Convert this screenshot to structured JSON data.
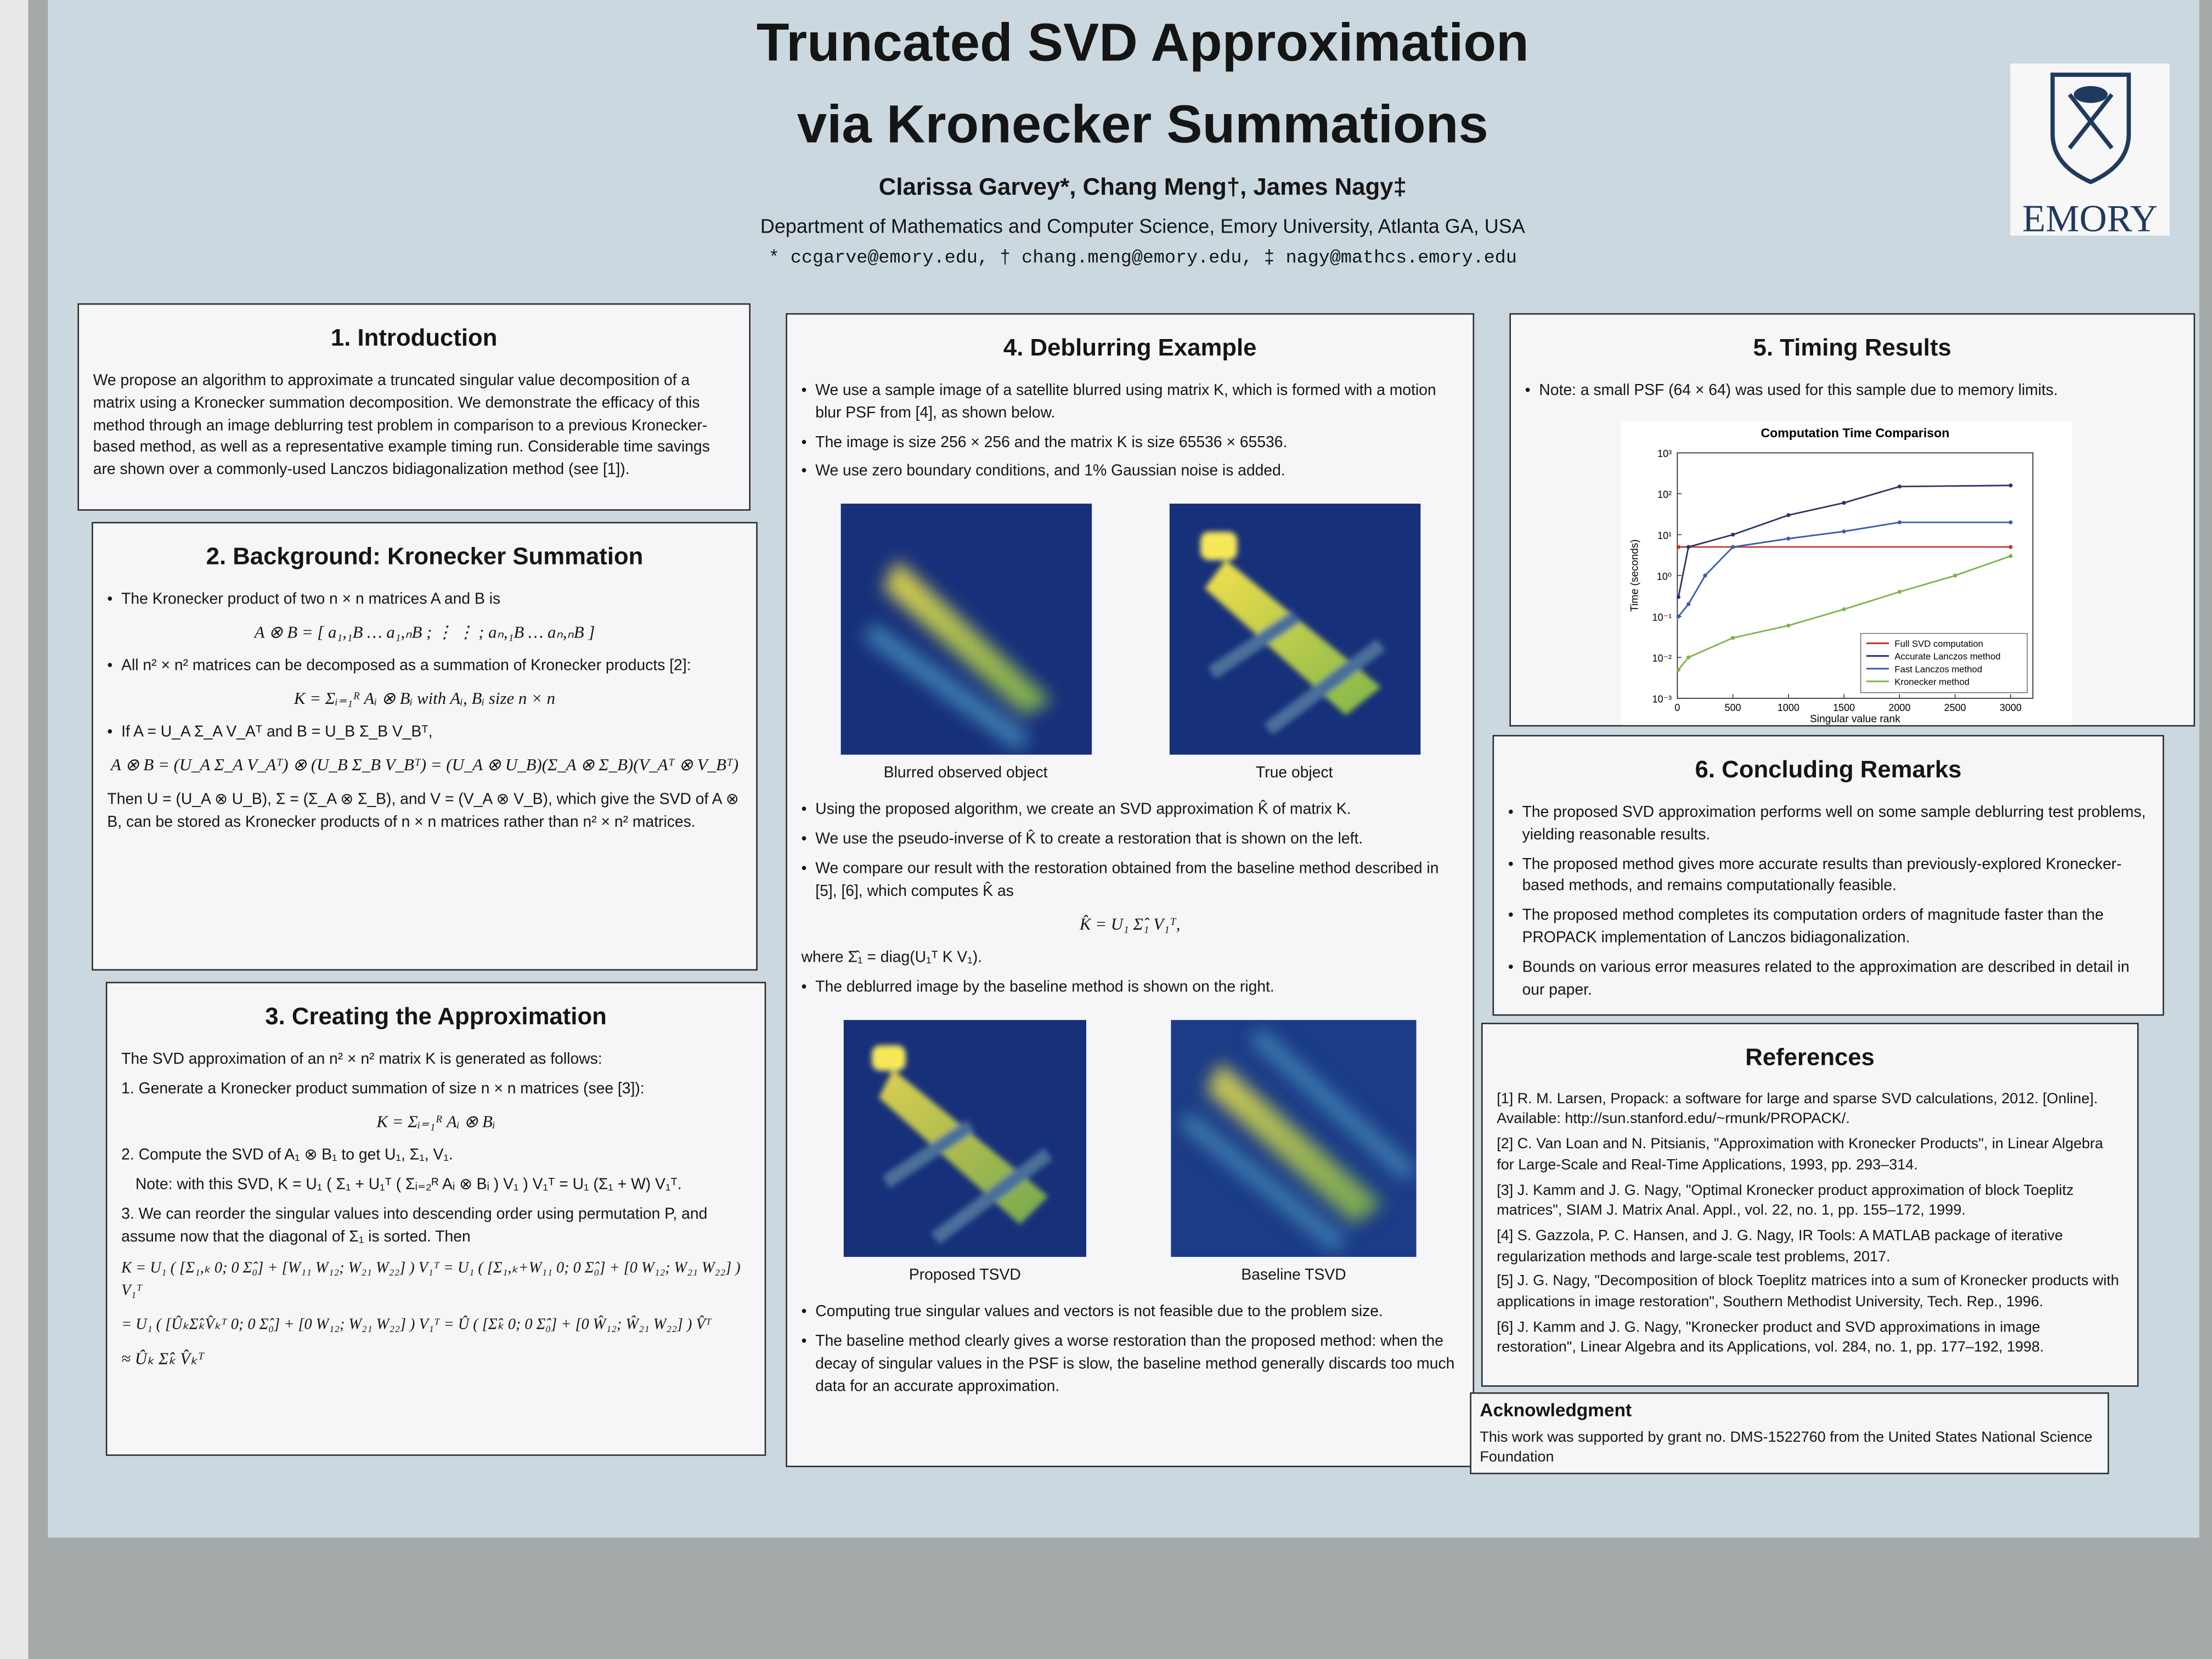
{
  "header": {
    "title": [
      "Truncated SVD Approximation",
      "via Kronecker Summations"
    ],
    "authors": "Clarissa Garvey*, Chang Meng†, James Nagy‡",
    "affiliation": "Department of Mathematics and Computer Science, Emory University, Atlanta GA, USA",
    "emails": "* ccgarve@emory.edu, † chang.meng@emory.edu, ‡ nagy@mathcs.emory.edu",
    "logo": "EMORY"
  },
  "introduction": {
    "heading": "1. Introduction",
    "text": "We propose an algorithm to approximate a truncated singular value decomposition of a matrix using a Kronecker summation decomposition. We demonstrate the efficacy of this method through an image deblurring test problem in comparison to a previous Kronecker-based method, as well as a representative example timing run. Considerable time savings are shown over a commonly-used Lanczos bidiagonalization method (see [1])."
  },
  "background": {
    "heading": "2. Background: Kronecker Summation",
    "bullet1": "The Kronecker product of two n × n matrices A and B is",
    "eq1": "A ⊗ B = [ a₁,₁B … a₁,ₙB ; ⋮ ⋮ ; aₙ,₁B … aₙ,ₙB ]",
    "bullet2": "All n² × n² matrices can be decomposed as a summation of Kronecker products [2]:",
    "eq2": "K = Σᵢ₌₁ᴿ Aᵢ ⊗ Bᵢ with Aᵢ, Bᵢ size n × n",
    "bullet3": "If A = U_A Σ_A V_Aᵀ and B = U_B Σ_B V_Bᵀ,",
    "eq3": "A ⊗ B = (U_A Σ_A V_Aᵀ) ⊗ (U_B Σ_B V_Bᵀ) = (U_A ⊗ U_B)(Σ_A ⊗ Σ_B)(V_Aᵀ ⊗ V_Bᵀ)",
    "text": "Then U = (U_A ⊗ U_B), Σ = (Σ_A ⊗ Σ_B), and V = (V_A ⊗ V_B), which give the SVD of A ⊗ B, can be stored as Kronecker products of n × n matrices rather than n² × n² matrices."
  },
  "creating": {
    "heading": "3. Creating the Approximation",
    "intro": "The SVD approximation of an n² × n² matrix K is generated as follows:",
    "step1": "1. Generate a Kronecker product summation of size n × n matrices (see [3]):",
    "eq1": "K = Σᵢ₌₁ᴿ Aᵢ ⊗ Bᵢ",
    "step2": "2. Compute the SVD of A₁ ⊗ B₁ to get U₁, Σ₁, V₁.",
    "note": "Note: with this SVD, K = U₁ ( Σ₁ + U₁ᵀ ( Σᵢ₌₂ᴿ Aᵢ ⊗ Bᵢ ) V₁ ) V₁ᵀ = U₁ (Σ₁ + W) V₁ᵀ.",
    "step3": "3. We can reorder the singular values into descending order using permutation P, and assume now that the diagonal of Σ₁ is sorted. Then",
    "eq2": "K = U₁ ( [Σ₁,ₖ 0; 0 Σ̂₀] + [W₁₁ W₁₂; W₂₁ W₂₂] ) V₁ᵀ = U₁ ( [Σ₁,ₖ+W₁₁ 0; 0 Σ̂₀] + [0 W₁₂; W₂₁ W₂₂] ) V₁ᵀ",
    "eq3": "= U₁ ( [ÛₖΣ̂ₖV̂ₖᵀ 0; 0 Σ̂₀] + [0 W₁₂; W₂₁ W₂₂] ) V₁ᵀ = Û ( [Σ̂ₖ 0; 0 Σ̂₀] + [0 Ŵ₁₂; Ŵ₂₁ W₂₂] ) V̂ᵀ",
    "eq4": "≈ Ûₖ Σ̂ₖ V̂ₖᵀ"
  },
  "deblurring": {
    "heading": "4. Deblurring Example",
    "bullets1": [
      "We use a sample image of a satellite blurred using matrix K, which is formed with a motion blur PSF from [4], as shown below.",
      "The image is size 256 × 256 and the matrix K is size 65536 × 65536.",
      "We use zero boundary conditions, and 1% Gaussian noise is added."
    ],
    "captions1": [
      "Blurred observed object",
      "True object"
    ],
    "bullets2": [
      "Using the proposed algorithm, we create an SVD approximation K̂ of matrix K.",
      "We use the pseudo-inverse of K̂ to create a restoration that is shown on the left.",
      "We compare our result with the restoration obtained from the baseline method described in [5], [6], which computes K̂ as"
    ],
    "eq": "K̂ = U₁ Σ̂₁ V₁ᵀ,",
    "where": "where Σ̂₁ = diag(U₁ᵀ K V₁).",
    "bullet3": "The deblurred image by the baseline method is shown on the right.",
    "captions2": [
      "Proposed TSVD",
      "Baseline TSVD"
    ],
    "bullets4": [
      "Computing true singular values and vectors is not feasible due to the problem size.",
      "The baseline method clearly gives a worse restoration than the proposed method: when the decay of singular values in the PSF is slow, the baseline method generally discards too much data for an accurate approximation."
    ]
  },
  "timing": {
    "heading": "5. Timing Results",
    "note": "Note: a small PSF (64 × 64) was used for this sample due to memory limits."
  },
  "chart_data": {
    "type": "line",
    "title": "Computation Time Comparison",
    "xlabel": "Singular value rank",
    "ylabel": "Time (seconds)",
    "yscale": "log",
    "xlim": [
      0,
      3200
    ],
    "ylim": [
      0.001,
      1000
    ],
    "xticks": [
      0,
      500,
      1000,
      1500,
      2000,
      2500,
      3000
    ],
    "yticks": [
      {
        "value": 0.001,
        "label": "10⁻³"
      },
      {
        "value": 0.01,
        "label": "10⁻²"
      },
      {
        "value": 0.1,
        "label": "10⁻¹"
      },
      {
        "value": 1,
        "label": "10⁰"
      },
      {
        "value": 10,
        "label": "10¹"
      },
      {
        "value": 100,
        "label": "10²"
      },
      {
        "value": 1000,
        "label": "10³"
      }
    ],
    "legend": "lower right",
    "series": [
      {
        "name": "Full SVD computation",
        "color": "#c0392b",
        "x": [
          10,
          3000
        ],
        "values": [
          5,
          5
        ]
      },
      {
        "name": "Accurate Lanczos method",
        "color": "#2c3566",
        "x": [
          10,
          100,
          500,
          1000,
          1500,
          2000,
          3000
        ],
        "values": [
          0.3,
          5,
          10,
          30,
          60,
          150,
          160
        ]
      },
      {
        "name": "Fast Lanczos method",
        "color": "#3b5bab",
        "x": [
          10,
          100,
          250,
          500,
          1000,
          1500,
          2000,
          3000
        ],
        "values": [
          0.1,
          0.2,
          1,
          5,
          8,
          12,
          20,
          20
        ]
      },
      {
        "name": "Kronecker method",
        "color": "#7fb24a",
        "x": [
          10,
          100,
          500,
          1000,
          1500,
          2000,
          2500,
          3000
        ],
        "values": [
          0.005,
          0.01,
          0.03,
          0.06,
          0.15,
          0.4,
          1,
          3
        ]
      }
    ]
  },
  "concluding": {
    "heading": "6. Concluding Remarks",
    "bullets": [
      "The proposed SVD approximation performs well on some sample deblurring test problems, yielding reasonable results.",
      "The proposed method gives more accurate results than previously-explored Kronecker-based methods, and remains computationally feasible.",
      "The proposed method completes its computation orders of magnitude faster than the PROPACK implementation of Lanczos bidiagonalization.",
      "Bounds on various error measures related to the approximation are described in detail in our paper."
    ]
  },
  "references": {
    "heading": "References",
    "items": [
      "[1] R. M. Larsen, Propack: a software for large and sparse SVD calculations, 2012. [Online]. Available: http://sun.stanford.edu/~rmunk/PROPACK/.",
      "[2] C. Van Loan and N. Pitsianis, \"Approximation with Kronecker Products\", in Linear Algebra for Large-Scale and Real-Time Applications, 1993, pp. 293–314.",
      "[3] J. Kamm and J. G. Nagy, \"Optimal Kronecker product approximation of block Toeplitz matrices\", SIAM J. Matrix Anal. Appl., vol. 22, no. 1, pp. 155–172, 1999.",
      "[4] S. Gazzola, P. C. Hansen, and J. G. Nagy, IR Tools: A MATLAB package of iterative regularization methods and large-scale test problems, 2017.",
      "[5] J. G. Nagy, \"Decomposition of block Toeplitz matrices into a sum of Kronecker products with applications in image restoration\", Southern Methodist University, Tech. Rep., 1996.",
      "[6] J. Kamm and J. G. Nagy, \"Kronecker product and SVD approximations in image restoration\", Linear Algebra and its Applications, vol. 284, no. 1, pp. 177–192, 1998."
    ]
  },
  "acknowledgment": {
    "heading": "Acknowledgment",
    "text": "This work was supported by grant no. DMS-1522760 from the United States National Science Foundation"
  }
}
